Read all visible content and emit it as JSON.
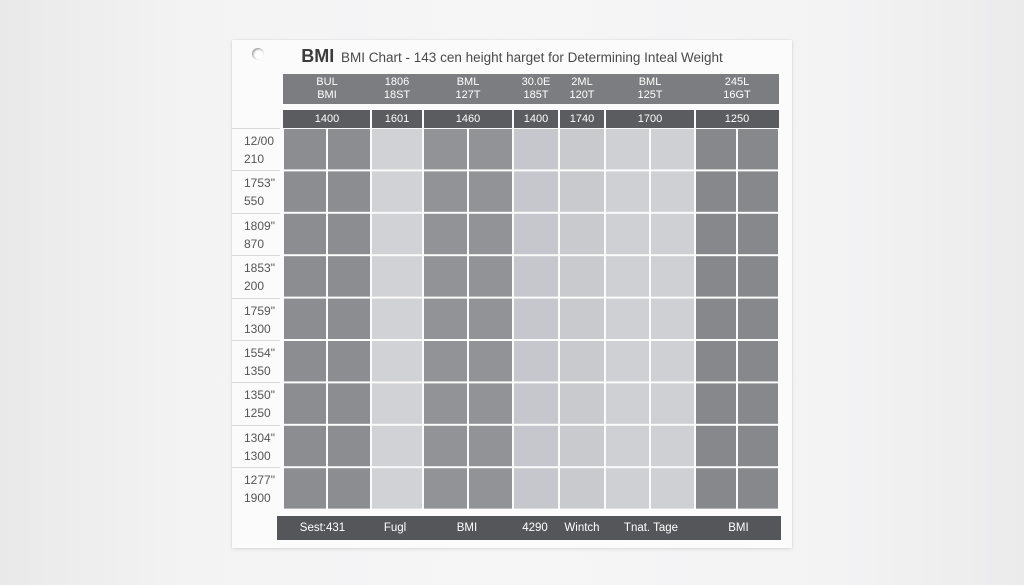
{
  "chart_data": {
    "type": "table",
    "title_brand": "BMI",
    "title": "BMI Chart - 143 cen height harget for Determining Inteal Weight",
    "header_columns": [
      {
        "line1": "BUL",
        "line2": "BMI"
      },
      {
        "line1": "1806",
        "line2": "18ST"
      },
      {
        "line1": "BML",
        "line2": "127T"
      },
      {
        "line1": "30.0E",
        "line2": "185T"
      },
      {
        "line1": "2ML",
        "line2": "120T"
      },
      {
        "line1": "BML",
        "line2": "125T"
      },
      {
        "line1": "245L",
        "line2": "16GT"
      }
    ],
    "sub_header": [
      "1400",
      "1601",
      "1460",
      "1400",
      "1740",
      "1700",
      "1250"
    ],
    "rows": [
      {
        "line1": "12/00",
        "line2": "210"
      },
      {
        "line1": "1753\"",
        "line2": "550"
      },
      {
        "line1": "1809\"",
        "line2": "870"
      },
      {
        "line1": "1853\"",
        "line2": "200"
      },
      {
        "line1": "1759\"",
        "line2": "1300"
      },
      {
        "line1": "1554\"",
        "line2": "1350"
      },
      {
        "line1": "1350\"",
        "line2": "1250"
      },
      {
        "line1": "1304\"",
        "line2": "1300"
      },
      {
        "line1": "1277\"",
        "line2": "1900"
      }
    ],
    "footer": [
      "Sest:431",
      "Fugl",
      "BMI",
      "4290",
      "Wintch",
      "Tnat. Tage",
      "BMI"
    ],
    "column_shades": [
      "#8c8d91",
      "#d1d2d6",
      "#929397",
      "#c6c7cc",
      "#c9cace",
      "#cfd0d4",
      "#87888c"
    ],
    "grid": true
  }
}
